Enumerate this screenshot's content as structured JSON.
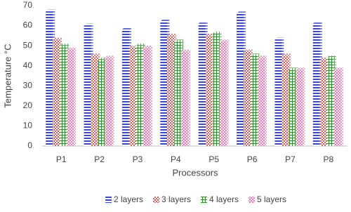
{
  "chart_data": {
    "type": "bar",
    "x_label": "Processors",
    "y_label": "Temperature °C",
    "categories": [
      "P1",
      "P2",
      "P3",
      "P4",
      "P5",
      "P6",
      "P7",
      "P8"
    ],
    "series": [
      {
        "name": "2 layers",
        "color": "#3a46d6",
        "values": [
          67,
          60,
          58,
          62,
          61,
          66,
          53,
          61
        ]
      },
      {
        "name": "3 layers",
        "color": "#d42a2a",
        "values": [
          53,
          45,
          49,
          55,
          55,
          47,
          45,
          43
        ]
      },
      {
        "name": "4 layers",
        "color": "#2e8b2e",
        "values": [
          50,
          43,
          50,
          52,
          56,
          45,
          38,
          44
        ]
      },
      {
        "name": "5 layers",
        "color": "#e0559a",
        "values": [
          48,
          44,
          49,
          47,
          52,
          44,
          38,
          38
        ]
      }
    ],
    "ylim": [
      0,
      70
    ],
    "yticks": [
      0,
      10,
      20,
      30,
      40,
      50,
      60,
      70
    ],
    "grid": false,
    "legend": "bottom"
  }
}
